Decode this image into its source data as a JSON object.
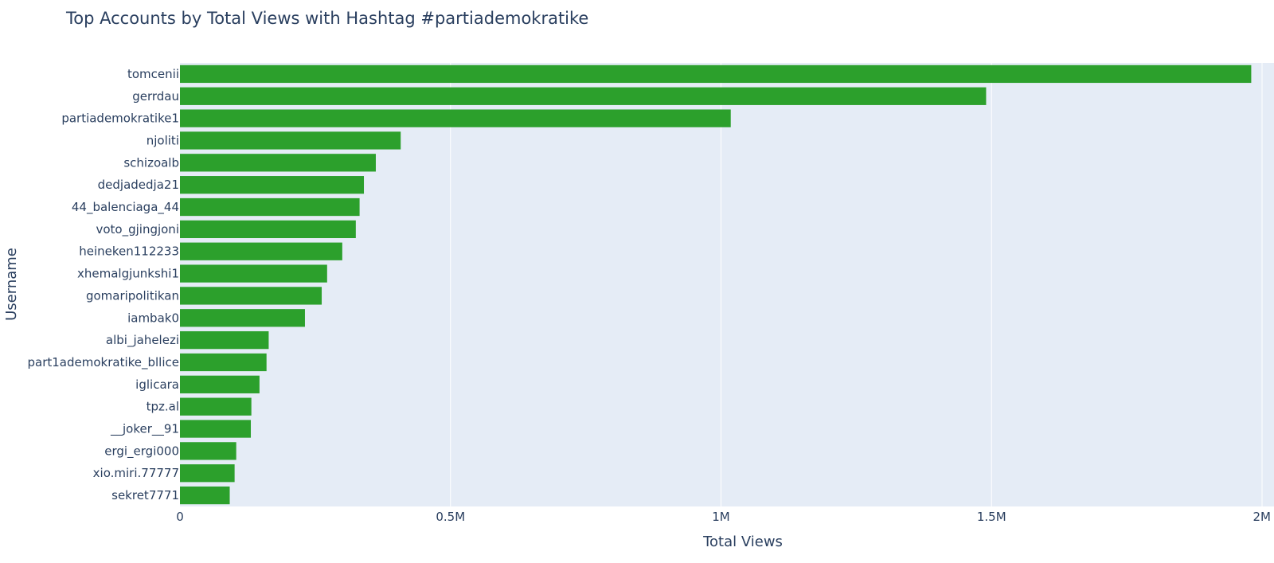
{
  "chart_data": {
    "type": "bar",
    "orientation": "horizontal",
    "title": "Top Accounts by Total Views with Hashtag #partiademokratike",
    "xlabel": "Total Views",
    "ylabel": "Username",
    "xlim": [
      0,
      2000000
    ],
    "x_ticks": [
      {
        "value": 0,
        "label": "0"
      },
      {
        "value": 500000,
        "label": "0.5M"
      },
      {
        "value": 1000000,
        "label": "1M"
      },
      {
        "value": 1500000,
        "label": "1.5M"
      },
      {
        "value": 2000000,
        "label": "2M"
      }
    ],
    "grid": true,
    "bar_color": "#2ca02c",
    "plot_bg_color": "#e5ecf6",
    "categories": [
      "tomcenii",
      "gerrdau",
      "partiademokratike1",
      "njoliti",
      "schizoalb",
      "dedjadedja21",
      "44_balenciaga_44",
      "voto_gjingjoni",
      "heineken112233",
      "xhemalgjunkshi1",
      "gomaripolitikan",
      "iambak0",
      "albi_jahelezi",
      "part1ademokratike_bllice",
      "iglicara",
      "tpz.al",
      "__joker__91",
      "ergi_ergi000",
      "xio.miri.77777",
      "sekret7771"
    ],
    "values": [
      1980000,
      1490000,
      1018000,
      408000,
      362000,
      340000,
      332000,
      325000,
      300000,
      272000,
      262000,
      231000,
      164000,
      160000,
      147000,
      132000,
      131000,
      104000,
      101000,
      92000
    ]
  }
}
